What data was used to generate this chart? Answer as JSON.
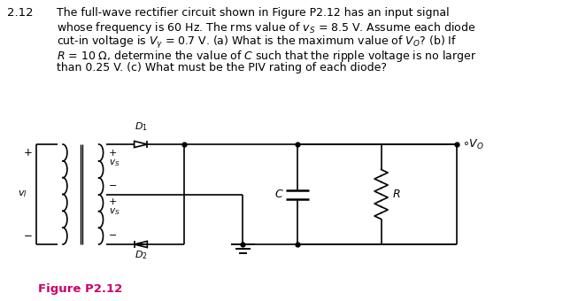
{
  "problem_number": "2.12",
  "text_lines": [
    "The full-wave rectifier circuit shown in Figure P2.12 has an input signal",
    "whose frequency is 60 Hz. The rms value of $v_S$ = 8.5 V. Assume each diode",
    "cut-in voltage is $V_{\\gamma}$ = 0.7 V. (a) What is the maximum value of $V_O$? (b) If",
    "$R$ = 10 Ω, determine the value of $C$ such that the ripple voltage is no larger",
    "than 0.25 V. (c) What must be the PIV rating of each diode?"
  ],
  "figure_label": "Figure P2.12",
  "figure_label_color": "#cc0066",
  "background_color": "#ffffff",
  "text_color": "#000000",
  "font_size": 9.5
}
